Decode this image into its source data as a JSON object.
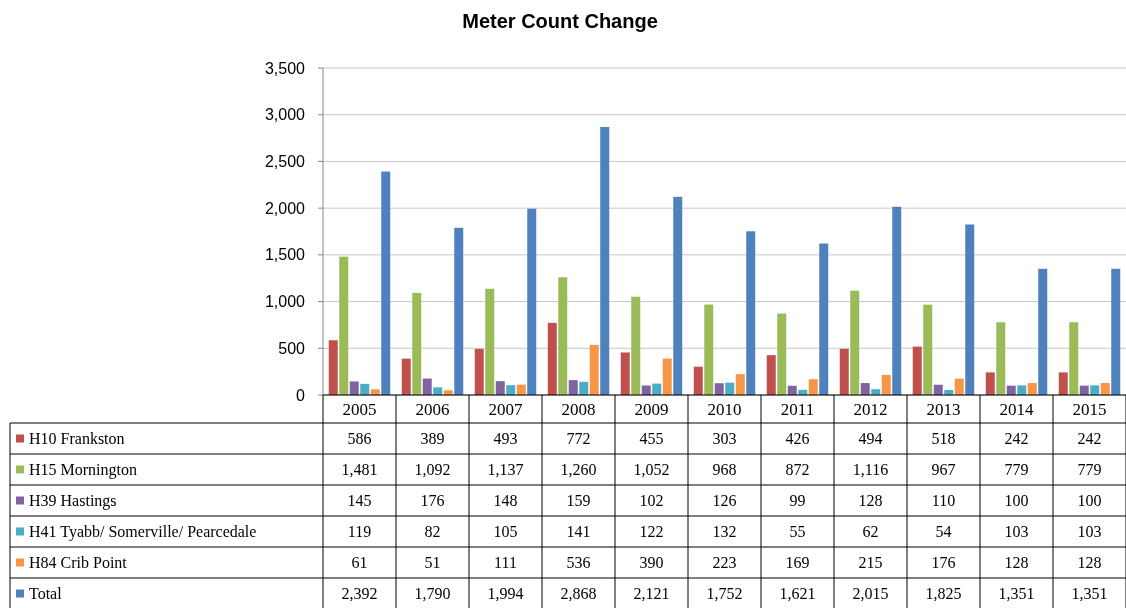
{
  "chart_data": {
    "type": "bar",
    "title": "Meter Count  Change",
    "categories": [
      "2005",
      "2006",
      "2007",
      "2008",
      "2009",
      "2010",
      "2011",
      "2012",
      "2013",
      "2014",
      "2015"
    ],
    "series": [
      {
        "name": "H10 Frankston",
        "color": "#c0504d",
        "values": [
          586,
          389,
          493,
          772,
          455,
          303,
          426,
          494,
          518,
          242,
          242
        ],
        "value_labels": [
          "586",
          "389",
          "493",
          "772",
          "455",
          "303",
          "426",
          "494",
          "518",
          "242",
          "242"
        ]
      },
      {
        "name": "H15 Mornington",
        "color": "#9bbb59",
        "values": [
          1481,
          1092,
          1137,
          1260,
          1052,
          968,
          872,
          1116,
          967,
          779,
          779
        ],
        "value_labels": [
          "1,481",
          "1,092",
          "1,137",
          "1,260",
          "1,052",
          "968",
          "872",
          "1,116",
          "967",
          "779",
          "779"
        ]
      },
      {
        "name": "H39 Hastings",
        "color": "#8064a2",
        "values": [
          145,
          176,
          148,
          159,
          102,
          126,
          99,
          128,
          110,
          100,
          100
        ],
        "value_labels": [
          "145",
          "176",
          "148",
          "159",
          "102",
          "126",
          "99",
          "128",
          "110",
          "100",
          "100"
        ]
      },
      {
        "name": "H41 Tyabb/ Somerville/ Pearcedale",
        "color": "#4bacc6",
        "values": [
          119,
          82,
          105,
          141,
          122,
          132,
          55,
          62,
          54,
          103,
          103
        ],
        "value_labels": [
          "119",
          "82",
          "105",
          "141",
          "122",
          "132",
          "55",
          "62",
          "54",
          "103",
          "103"
        ]
      },
      {
        "name": "H84 Crib Point",
        "color": "#f79646",
        "values": [
          61,
          51,
          111,
          536,
          390,
          223,
          169,
          215,
          176,
          128,
          128
        ],
        "value_labels": [
          "61",
          "51",
          "111",
          "536",
          "390",
          "223",
          "169",
          "215",
          "176",
          "128",
          "128"
        ]
      },
      {
        "name": "Total",
        "color": "#4f81bd",
        "values": [
          2392,
          1790,
          1994,
          2868,
          2121,
          1752,
          1621,
          2015,
          1825,
          1351,
          1351
        ],
        "value_labels": [
          "2,392",
          "1,790",
          "1,994",
          "2,868",
          "2,121",
          "1,752",
          "1,621",
          "2,015",
          "1,825",
          "1,351",
          "1,351"
        ]
      }
    ],
    "ylim": [
      0,
      3500
    ],
    "yticks": [
      0,
      {
        "value": 500,
        "label": "500"
      },
      {
        "value": 1000,
        "label": "1,000"
      },
      {
        "value": 1500,
        "label": "1,500"
      },
      {
        "value": 2000,
        "label": "2,000"
      },
      {
        "value": 2500,
        "label": "2,500"
      },
      {
        "value": 3000,
        "label": "3,000"
      },
      {
        "value": 3500,
        "label": "3,500"
      }
    ],
    "grid": "y",
    "legend": "bottom"
  }
}
